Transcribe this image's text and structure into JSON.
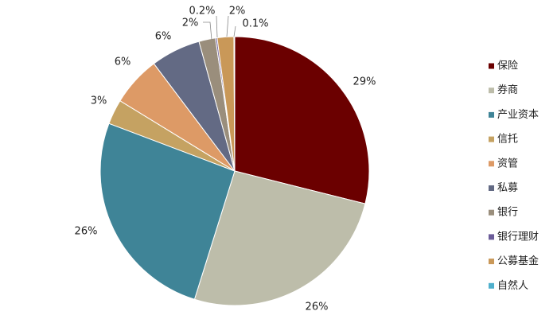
{
  "chart_data": {
    "type": "pie",
    "start_angle_deg": 0,
    "direction": "clockwise",
    "legend_position": "right",
    "series": [
      {
        "name": "保险",
        "value": 29,
        "label": "29%",
        "color": "#6B0000"
      },
      {
        "name": "券商",
        "value": 26,
        "label": "26%",
        "color": "#BDBDAA"
      },
      {
        "name": "产业资本",
        "value": 26,
        "label": "26%",
        "color": "#3F8497"
      },
      {
        "name": "信托",
        "value": 3,
        "label": "3%",
        "color": "#C5A262"
      },
      {
        "name": "资管",
        "value": 6,
        "label": "6%",
        "color": "#DD9A66"
      },
      {
        "name": "私募",
        "value": 6,
        "label": "6%",
        "color": "#636A84"
      },
      {
        "name": "银行",
        "value": 2,
        "label": "2%",
        "color": "#9A8E7C"
      },
      {
        "name": "银行理财",
        "value": 0.2,
        "label": "0.2%",
        "color": "#6B5C99"
      },
      {
        "name": "公募基金",
        "value": 2,
        "label": "2%",
        "color": "#C99858"
      },
      {
        "name": "自然人",
        "value": 0.1,
        "label": "0.1%",
        "color": "#4FB0CD"
      }
    ]
  }
}
